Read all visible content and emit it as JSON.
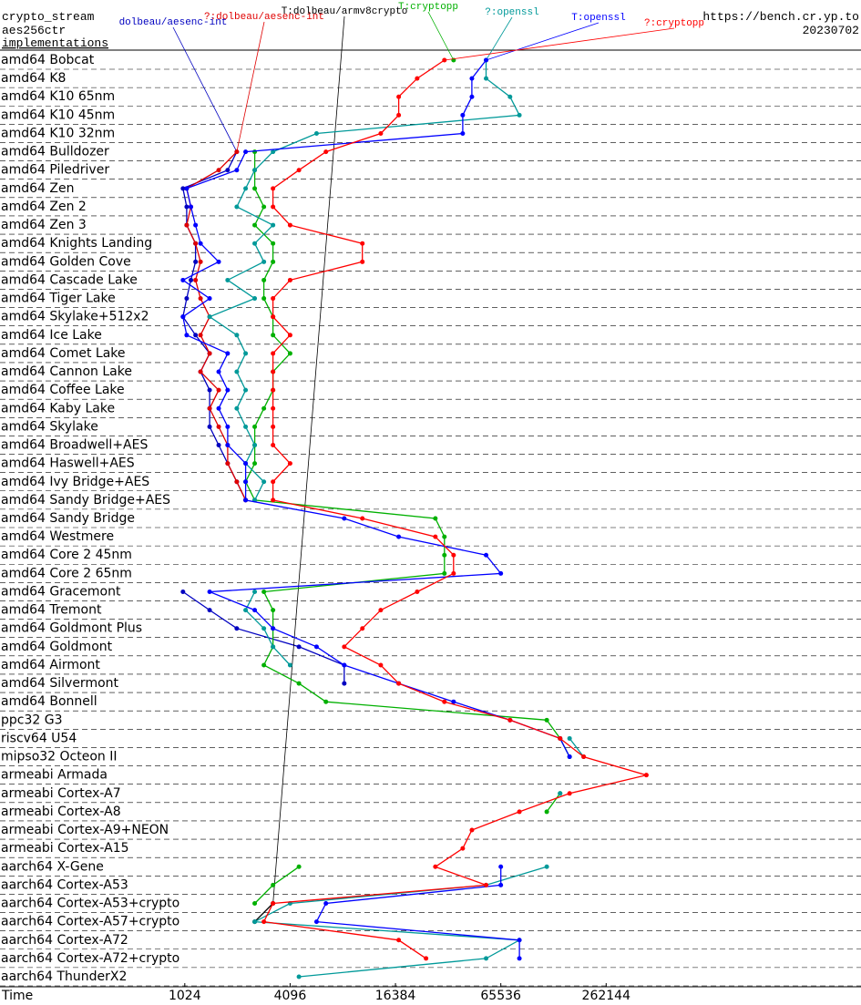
{
  "chart_data": {
    "type": "line",
    "title": "crypto_stream",
    "subtitle": "aes256ctr",
    "y_label": "implementations",
    "source": "https://bench.cr.yp.to",
    "date": "20230702",
    "x_label": "Time",
    "xscale": "log",
    "xlim": [
      90,
      7500000
    ],
    "xticks": [
      1024,
      4096,
      16384,
      65536,
      262144
    ],
    "categories": [
      "amd64 Bobcat",
      "amd64 K8",
      "amd64 K10 65nm",
      "amd64 K10 45nm",
      "amd64 K10 32nm",
      "amd64 Bulldozer",
      "amd64 Piledriver",
      "amd64 Zen",
      "amd64 Zen 2",
      "amd64 Zen 3",
      "amd64 Knights Landing",
      "amd64 Golden Cove",
      "amd64 Cascade Lake",
      "amd64 Tiger Lake",
      "amd64 Skylake+512x2",
      "amd64 Ice Lake",
      "amd64 Comet Lake",
      "amd64 Cannon Lake",
      "amd64 Coffee Lake",
      "amd64 Kaby Lake",
      "amd64 Skylake",
      "amd64 Broadwell+AES",
      "amd64 Haswell+AES",
      "amd64 Ivy Bridge+AES",
      "amd64 Sandy Bridge+AES",
      "amd64 Sandy Bridge",
      "amd64 Westmere",
      "amd64 Core 2 45nm",
      "amd64 Core 2 65nm",
      "amd64 Gracemont",
      "amd64 Tremont",
      "amd64 Goldmont Plus",
      "amd64 Goldmont",
      "amd64 Airmont",
      "amd64 Silvermont",
      "amd64 Bonnell",
      "ppc32 G3",
      "riscv64 U54",
      "mipso32 Octeon II",
      "armeabi Armada",
      "armeabi Cortex-A7",
      "armeabi Cortex-A8",
      "armeabi Cortex-A9+NEON",
      "armeabi Cortex-A15",
      "aarch64 X-Gene",
      "aarch64 Cortex-A53",
      "aarch64 Cortex-A53+crypto",
      "aarch64 Cortex-A57+crypto",
      "aarch64 Cortex-A72",
      "aarch64 Cortex-A72+crypto",
      "aarch64 ThunderX2"
    ],
    "series": [
      {
        "name": "dolbeau/aesenc-int",
        "color": "#0000c0",
        "values": [
          null,
          null,
          null,
          null,
          null,
          2030,
          1800,
          1000,
          1050,
          1050,
          1180,
          1180,
          1110,
          1050,
          1000,
          1180,
          1420,
          1260,
          1420,
          1420,
          1420,
          1600,
          1800,
          2030,
          2280,
          null,
          null,
          null,
          null,
          1000,
          1420,
          2030,
          4600,
          8350,
          8350,
          null,
          null,
          null,
          null,
          null,
          null,
          null,
          null,
          null,
          null,
          null,
          null,
          null,
          null,
          null,
          null
        ]
      },
      {
        "name": "?:dolbeau/aesenc-int",
        "color": "#e00000",
        "values": [
          null,
          null,
          null,
          null,
          null,
          2030,
          1600,
          1050,
          1110,
          1050,
          1180,
          1260,
          1180,
          1260,
          1420,
          1260,
          1420,
          1260,
          1600,
          1420,
          1600,
          1800,
          1800,
          2030,
          2280,
          null,
          null,
          null,
          null,
          null,
          null,
          null,
          null,
          null,
          null,
          null,
          null,
          null,
          null,
          null,
          null,
          null,
          null,
          null,
          null,
          null,
          null,
          null,
          null,
          null,
          null
        ]
      },
      {
        "name": "T:dolbeau/armv8crypto",
        "color": "#000000",
        "values": [
          null,
          null,
          null,
          null,
          null,
          null,
          null,
          null,
          null,
          null,
          null,
          null,
          null,
          null,
          null,
          null,
          null,
          null,
          null,
          null,
          null,
          null,
          null,
          null,
          null,
          null,
          null,
          null,
          null,
          null,
          null,
          null,
          null,
          null,
          null,
          null,
          null,
          null,
          null,
          null,
          null,
          null,
          null,
          null,
          null,
          null,
          3270,
          2570,
          null,
          null,
          null
        ]
      },
      {
        "name": "T:cryptopp",
        "color": "#00b000",
        "values": [
          35200,
          null,
          null,
          null,
          null,
          2570,
          2570,
          2570,
          2900,
          2570,
          3270,
          3270,
          2900,
          2900,
          3270,
          3270,
          4096,
          3270,
          3270,
          2900,
          2570,
          2570,
          2570,
          2280,
          2570,
          27700,
          31200,
          31200,
          31200,
          2900,
          3270,
          3270,
          3270,
          2900,
          4600,
          6560,
          120000,
          143000,
          162000,
          null,
          143000,
          120000,
          null,
          null,
          4600,
          3270,
          2570,
          null,
          null,
          null,
          null
        ]
      },
      {
        "name": "?:openssl",
        "color": "#009999",
        "values": [
          54000,
          54000,
          74000,
          83700,
          5800,
          3270,
          2570,
          2280,
          2030,
          3270,
          2570,
          2900,
          1800,
          2570,
          1420,
          2030,
          2280,
          2030,
          2280,
          2030,
          2280,
          2570,
          2280,
          2900,
          2570,
          null,
          null,
          null,
          null,
          2570,
          2280,
          2900,
          3270,
          4096,
          null,
          null,
          null,
          162000,
          195000,
          null,
          143000,
          null,
          null,
          null,
          120000,
          54000,
          4096,
          2570,
          83700,
          54000,
          4600
        ]
      },
      {
        "name": "T:openssl",
        "color": "#0000ff",
        "values": [
          54000,
          44800,
          44800,
          39700,
          39700,
          2280,
          2030,
          1050,
          1110,
          1180,
          1260,
          1600,
          1000,
          1420,
          1000,
          1050,
          1800,
          1600,
          1800,
          1600,
          1800,
          1800,
          2280,
          2280,
          2280,
          8350,
          17100,
          54000,
          65536,
          1420,
          2570,
          3270,
          5800,
          8350,
          17100,
          35200,
          74000,
          143000,
          162000,
          null,
          null,
          null,
          null,
          null,
          65536,
          65536,
          6560,
          5800,
          83700,
          83700,
          null
        ]
      },
      {
        "name": "?:cryptopp",
        "color": "#ff0000",
        "values": [
          31200,
          21800,
          17100,
          17100,
          13500,
          6560,
          4600,
          3270,
          3270,
          4096,
          10600,
          10600,
          4096,
          3270,
          3270,
          4096,
          3270,
          3270,
          3270,
          3270,
          3270,
          3270,
          4096,
          3270,
          3270,
          10600,
          27700,
          35200,
          35200,
          21800,
          13500,
          10600,
          8350,
          13500,
          17100,
          31200,
          74000,
          143000,
          195000,
          445000,
          162000,
          83700,
          44800,
          39700,
          27700,
          54000,
          3270,
          2900,
          17100,
          24500,
          null
        ]
      }
    ]
  }
}
